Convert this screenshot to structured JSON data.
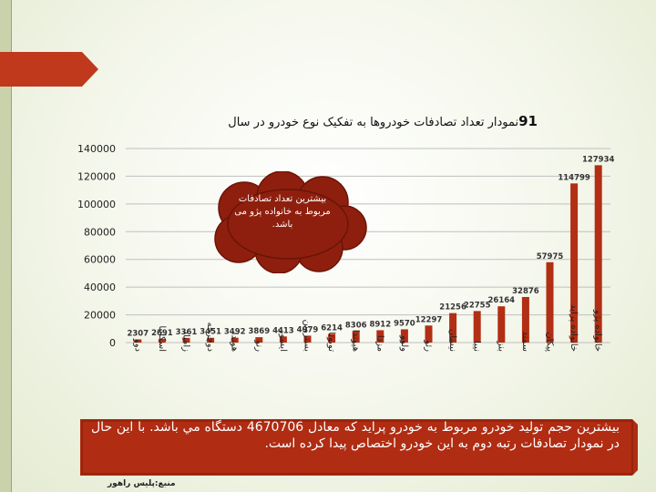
{
  "slide": {
    "title_number": "91",
    "title_text": "نمودار تعداد تصادفات خودروها به تفکیک نوع خودرو در سال",
    "callout": "بیشترین تعداد تصادفات مربوط به خانواده پژو می باشد.",
    "note": "بیشترین حجم تولید خودرو مربوط به خودرو پراید که معادل 4670706 دستگاه مي باشد. با این حال در نمودار تصادفات رتبه دوم به این خودرو اختصاص پیدا کرده است.",
    "source": "منبع:پلیس راهور"
  },
  "colors": {
    "bar": "#b22e14",
    "accent": "#c0391c",
    "cloud": "#8e1f0e",
    "note_bg": "#b02c12",
    "axis": "#bfbfbf",
    "strip": "#c9d2aa"
  },
  "chart_data": {
    "type": "bar",
    "categories": [
      "دوو",
      "اسکانیا",
      "زامیاد",
      "دوچرخه",
      "هوندا",
      "رنو",
      "ایسوز",
      "بسترونن",
      "تویوتا",
      "هیوندا",
      "مزدا",
      "ولوو",
      "رئو",
      "نیسان",
      "نیبا",
      "بنز",
      "سمند",
      "پیکان",
      "خانواده پراید",
      "خانواده پژو"
    ],
    "values": [
      2307,
      2691,
      3361,
      3451,
      3492,
      3869,
      4413,
      4979,
      6214,
      8306,
      8912,
      9570,
      12297,
      21256,
      22755,
      26164,
      32876,
      57975,
      114799,
      127934
    ],
    "ylim": [
      0,
      140000
    ],
    "yticks": [
      "0",
      "20000",
      "40000",
      "60000",
      "80000",
      "100000",
      "120000",
      "140000"
    ],
    "grid": true,
    "xlabel": "",
    "ylabel": ""
  }
}
